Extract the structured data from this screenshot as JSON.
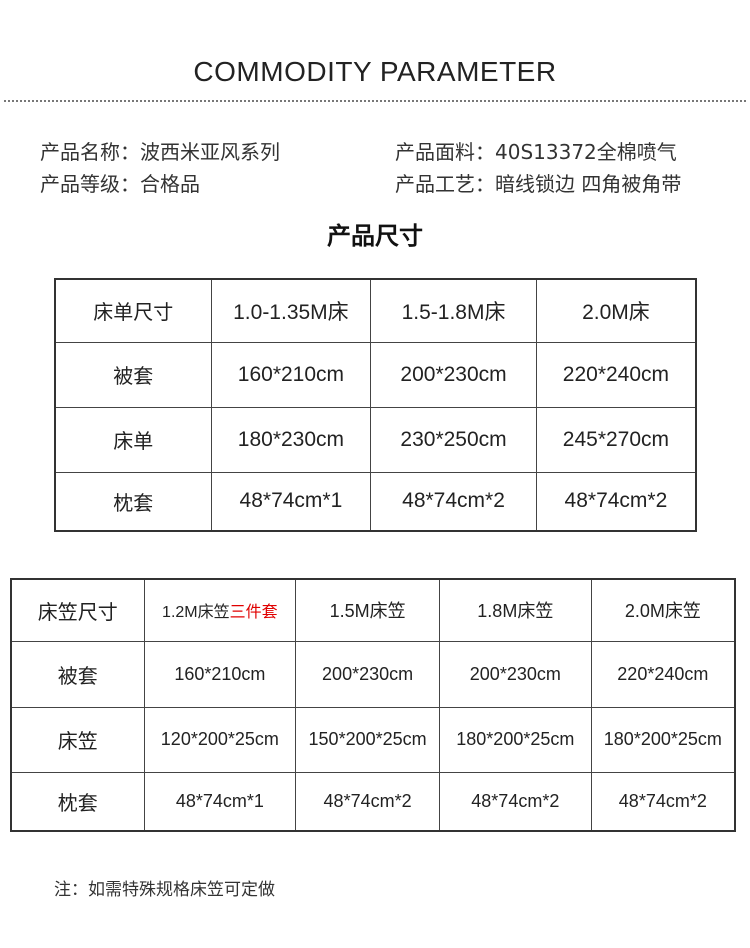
{
  "title": "COMMODITY   PARAMETER",
  "info": {
    "name": "产品名称：波西米亚风系列",
    "fabric": "产品面料：40S13372全棉喷气",
    "grade": "产品等级：合格品",
    "craft": "产品工艺：暗线锁边 四角被角带"
  },
  "subtitle": "产品尺寸",
  "table1": {
    "header": [
      "床单尺寸",
      "1.0-1.35M床",
      "1.5-1.8M床",
      "2.0M床"
    ],
    "rows": [
      [
        "被套",
        "160*210cm",
        "200*230cm",
        "220*240cm"
      ],
      [
        "床单",
        "180*230cm",
        "230*250cm",
        "245*270cm"
      ],
      [
        "枕套",
        "48*74cm*1",
        "48*74cm*2",
        "48*74cm*2"
      ]
    ]
  },
  "table2": {
    "header": [
      "床笠尺寸",
      "1.2M床笠",
      "1.5M床笠",
      "1.8M床笠",
      "2.0M床笠"
    ],
    "header_highlight": "三件套",
    "highlight_color": "#e00000",
    "rows": [
      [
        "被套",
        "160*210cm",
        "200*230cm",
        "200*230cm",
        "220*240cm"
      ],
      [
        "床笠",
        "120*200*25cm",
        "150*200*25cm",
        "180*200*25cm",
        "180*200*25cm"
      ],
      [
        "枕套",
        "48*74cm*1",
        "48*74cm*2",
        "48*74cm*2",
        "48*74cm*2"
      ]
    ]
  },
  "note": "注：如需特殊规格床笠可定做"
}
